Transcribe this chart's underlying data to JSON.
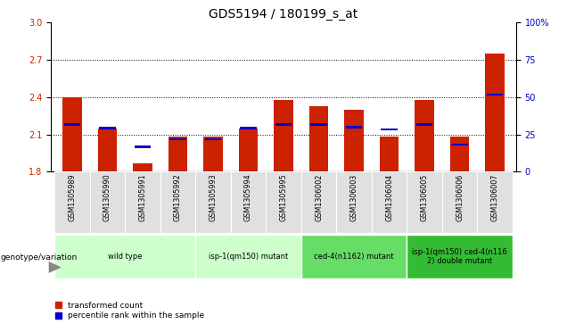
{
  "title": "GDS5194 / 180199_s_at",
  "samples": [
    "GSM1305989",
    "GSM1305990",
    "GSM1305991",
    "GSM1305992",
    "GSM1305993",
    "GSM1305994",
    "GSM1305995",
    "GSM1306002",
    "GSM1306003",
    "GSM1306004",
    "GSM1306005",
    "GSM1306006",
    "GSM1306007"
  ],
  "red_values": [
    2.4,
    2.15,
    1.87,
    2.08,
    2.08,
    2.15,
    2.38,
    2.33,
    2.3,
    2.08,
    2.38,
    2.08,
    2.75
  ],
  "blue_values": [
    2.18,
    2.15,
    2.0,
    2.06,
    2.06,
    2.15,
    2.18,
    2.18,
    2.16,
    2.14,
    2.18,
    2.02,
    2.42
  ],
  "ymin": 1.8,
  "ymax": 3.0,
  "yticks_left": [
    1.8,
    2.1,
    2.4,
    2.7,
    3.0
  ],
  "yticks_right": [
    0,
    25,
    50,
    75,
    100
  ],
  "yright_min": 0,
  "yright_max": 100,
  "hlines": [
    2.1,
    2.4,
    2.7
  ],
  "groups": [
    {
      "label": "wild type",
      "indices": [
        0,
        1,
        2,
        3
      ],
      "color": "#ccffcc"
    },
    {
      "label": "isp-1(qm150) mutant",
      "indices": [
        4,
        5,
        6
      ],
      "color": "#ccffcc"
    },
    {
      "label": "ced-4(n1162) mutant",
      "indices": [
        7,
        8,
        9
      ],
      "color": "#66dd66"
    },
    {
      "label": "isp-1(qm150) ced-4(n116\n2) double mutant",
      "indices": [
        10,
        11,
        12
      ],
      "color": "#33bb33"
    }
  ],
  "bar_color": "#cc2200",
  "dot_color": "#0000cc",
  "bar_width": 0.55,
  "ylabel_left_color": "#cc2200",
  "ylabel_right_color": "#0000cc",
  "legend_labels": [
    "transformed count",
    "percentile rank within the sample"
  ],
  "genotype_label": "genotype/variation",
  "title_fontsize": 10,
  "tick_fontsize": 7,
  "bar_bottom": 1.8
}
